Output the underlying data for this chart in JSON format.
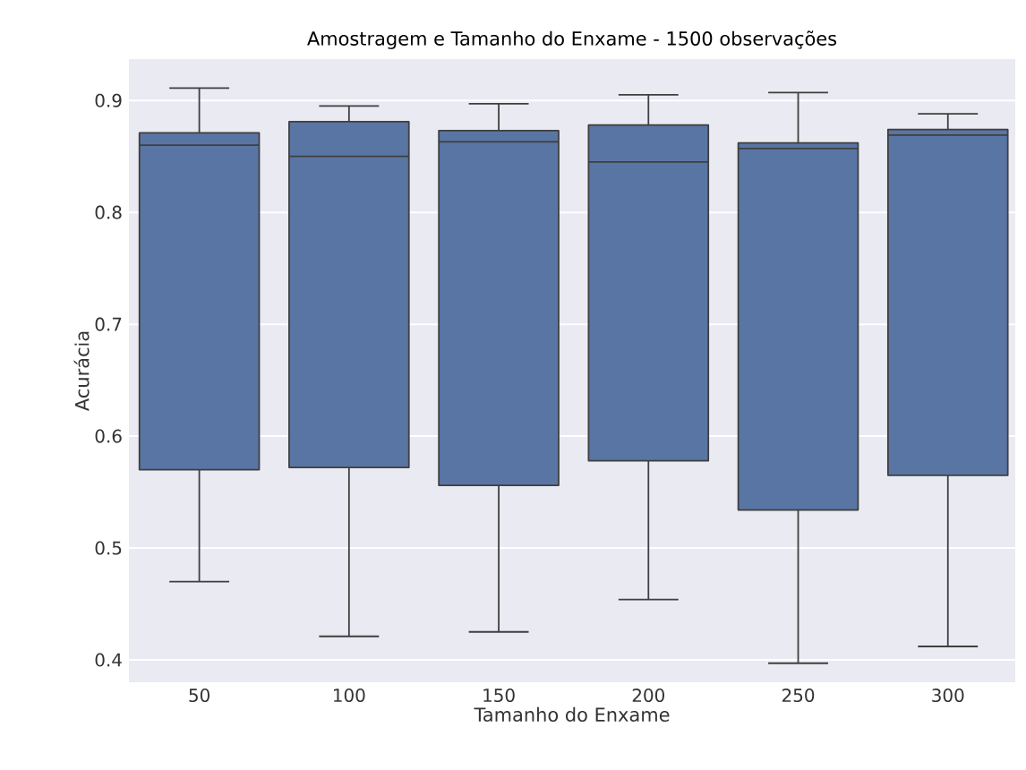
{
  "chart_data": {
    "type": "box",
    "title": "Amostragem e Tamanho do Enxame - 1500 observações",
    "xlabel": "Tamanho do Enxame",
    "ylabel": "Acurácia",
    "categories": [
      "50",
      "100",
      "150",
      "200",
      "250",
      "300"
    ],
    "color": "#5975a4",
    "boxes": [
      {
        "low": 0.47,
        "q1": 0.57,
        "median": 0.86,
        "q3": 0.871,
        "high": 0.911
      },
      {
        "low": 0.421,
        "q1": 0.572,
        "median": 0.85,
        "q3": 0.881,
        "high": 0.895
      },
      {
        "low": 0.425,
        "q1": 0.556,
        "median": 0.863,
        "q3": 0.873,
        "high": 0.897
      },
      {
        "low": 0.454,
        "q1": 0.578,
        "median": 0.845,
        "q3": 0.878,
        "high": 0.905
      },
      {
        "low": 0.397,
        "q1": 0.534,
        "median": 0.857,
        "q3": 0.862,
        "high": 0.907
      },
      {
        "low": 0.412,
        "q1": 0.565,
        "median": 0.869,
        "q3": 0.874,
        "high": 0.888
      }
    ],
    "ylim": [
      0.38,
      0.937
    ],
    "yticks": [
      0.4,
      0.5,
      0.6,
      0.7,
      0.8,
      0.9
    ],
    "grid": "y"
  }
}
